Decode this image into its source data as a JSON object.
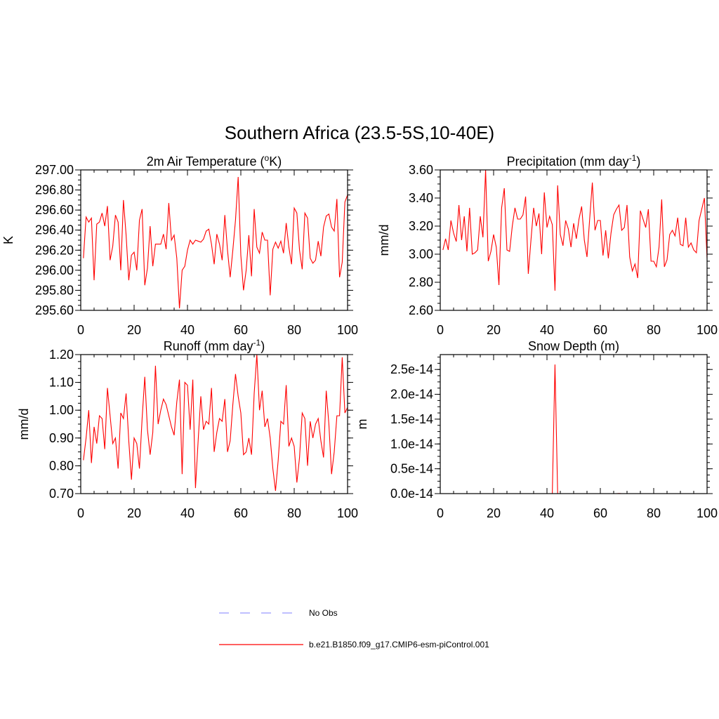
{
  "figure": {
    "title": "Southern Africa (23.5-5S,10-40E)"
  },
  "colors": {
    "series": "#ff0000",
    "obs": "#9999ff",
    "axis": "#000000",
    "background": "#ffffff"
  },
  "legend": {
    "placement": "bottom-center",
    "entries": [
      {
        "label": "No Obs",
        "style": "dashed",
        "color": "#9999ff"
      },
      {
        "label": "b.e21.B1850.f09_g17.CMIP6-esm-piControl.001",
        "style": "solid",
        "color": "#ff0000"
      }
    ]
  },
  "chart_data": [
    {
      "type": "line",
      "title_main": "2m Air Temperature (",
      "title_sup": "o",
      "title_end": "K)",
      "ylabel": "K",
      "xlabel": "",
      "xlim": [
        0,
        100
      ],
      "ylim": [
        295.6,
        297.0
      ],
      "xticks": [
        0,
        20,
        40,
        60,
        80,
        100
      ],
      "yticks": [
        295.6,
        295.8,
        296.0,
        296.2,
        296.4,
        296.6,
        296.8,
        297.0
      ],
      "ytick_labels": [
        "295.60",
        "295.80",
        "296.00",
        "296.20",
        "296.40",
        "296.60",
        "296.80",
        "297.00"
      ],
      "series": [
        {
          "name": "b.e21.B1850.f09_g17.CMIP6-esm-piControl.001",
          "x_start": 1,
          "values": [
            296.12,
            296.53,
            296.48,
            296.52,
            295.9,
            296.46,
            296.48,
            296.57,
            296.44,
            296.64,
            296.1,
            296.24,
            296.55,
            296.48,
            296.0,
            296.7,
            296.35,
            295.9,
            296.15,
            296.18,
            296.0,
            296.5,
            296.61,
            295.85,
            296.02,
            296.44,
            296.04,
            296.26,
            296.26,
            296.26,
            296.36,
            296.21,
            296.67,
            296.3,
            296.35,
            296.12,
            295.62,
            296.0,
            296.04,
            296.2,
            296.3,
            296.26,
            296.3,
            296.29,
            296.28,
            296.31,
            296.39,
            296.41,
            296.26,
            296.06,
            296.36,
            296.26,
            296.1,
            296.55,
            296.2,
            295.93,
            296.2,
            296.5,
            296.93,
            296.15,
            295.8,
            296.0,
            296.35,
            295.94,
            296.61,
            296.23,
            296.17,
            296.38,
            296.3,
            296.3,
            295.75,
            296.21,
            296.28,
            296.22,
            296.29,
            296.17,
            296.47,
            296.23,
            296.06,
            296.62,
            296.57,
            296.2,
            296.01,
            296.57,
            296.52,
            296.12,
            296.07,
            296.1,
            296.29,
            296.14,
            296.43,
            296.54,
            296.56,
            296.43,
            296.39,
            296.71,
            295.93,
            296.08,
            296.68,
            296.75
          ]
        }
      ]
    },
    {
      "type": "line",
      "title_main": "Precipitation (mm day",
      "title_sup": "-1",
      "title_end": ")",
      "ylabel": "mm/d",
      "xlabel": "",
      "xlim": [
        0,
        100
      ],
      "ylim": [
        2.6,
        3.6
      ],
      "xticks": [
        0,
        20,
        40,
        60,
        80,
        100
      ],
      "yticks": [
        2.6,
        2.8,
        3.0,
        3.2,
        3.4,
        3.6
      ],
      "ytick_labels": [
        "2.60",
        "2.80",
        "3.00",
        "3.20",
        "3.40",
        "3.60"
      ],
      "series": [
        {
          "name": "b.e21.B1850.f09_g17.CMIP6-esm-piControl.001",
          "x_start": 1,
          "values": [
            3.03,
            3.11,
            3.03,
            3.24,
            3.15,
            3.09,
            3.35,
            3.1,
            3.27,
            3.02,
            3.33,
            3.0,
            3.01,
            3.03,
            3.27,
            3.12,
            3.6,
            2.95,
            3.02,
            3.14,
            3.05,
            2.78,
            3.33,
            3.47,
            3.03,
            3.02,
            3.2,
            3.33,
            3.25,
            3.25,
            3.28,
            3.41,
            2.86,
            3.1,
            3.33,
            3.2,
            3.29,
            3.0,
            3.44,
            3.19,
            3.27,
            3.21,
            2.74,
            3.49,
            3.14,
            3.06,
            3.24,
            3.18,
            3.05,
            3.22,
            3.11,
            3.25,
            3.34,
            3.1,
            2.98,
            3.25,
            3.51,
            3.17,
            3.24,
            3.24,
            2.99,
            3.17,
            2.97,
            3.15,
            3.28,
            3.32,
            3.35,
            3.17,
            3.19,
            3.35,
            2.98,
            2.88,
            2.93,
            2.83,
            3.31,
            3.25,
            3.19,
            3.32,
            2.95,
            2.95,
            2.91,
            3.05,
            3.39,
            2.91,
            2.96,
            3.14,
            3.17,
            3.13,
            3.26,
            3.07,
            3.06,
            3.26,
            3.05,
            3.08,
            3.03,
            3.01,
            3.24,
            3.32,
            3.4,
            2.97
          ]
        }
      ]
    },
    {
      "type": "line",
      "title_main": "Runoff (mm day",
      "title_sup": "-1",
      "title_end": ")",
      "ylabel": "mm/d",
      "xlabel": "",
      "xlim": [
        0,
        100
      ],
      "ylim": [
        0.7,
        1.2
      ],
      "xticks": [
        0,
        20,
        40,
        60,
        80,
        100
      ],
      "yticks": [
        0.7,
        0.8,
        0.9,
        1.0,
        1.1,
        1.2
      ],
      "ytick_labels": [
        "0.70",
        "0.80",
        "0.90",
        "1.00",
        "1.10",
        "1.20"
      ],
      "series": [
        {
          "name": "b.e21.B1850.f09_g17.CMIP6-esm-piControl.001",
          "x_start": 1,
          "values": [
            0.82,
            0.9,
            1.0,
            0.81,
            0.94,
            0.88,
            0.98,
            0.97,
            0.86,
            1.08,
            0.98,
            0.88,
            0.9,
            0.79,
            0.99,
            0.97,
            1.06,
            0.89,
            0.75,
            0.9,
            0.88,
            0.79,
            0.97,
            1.12,
            0.93,
            0.84,
            0.92,
            1.16,
            0.95,
            1.0,
            1.04,
            1.02,
            0.98,
            0.94,
            0.91,
            1.03,
            1.11,
            0.77,
            1.1,
            1.09,
            0.93,
            1.11,
            0.72,
            0.89,
            1.05,
            0.93,
            0.96,
            0.95,
            1.08,
            0.85,
            0.92,
            0.97,
            0.96,
            1.04,
            0.85,
            0.89,
            1.02,
            1.13,
            1.05,
            0.99,
            0.84,
            0.85,
            0.9,
            0.84,
            1.06,
            1.2,
            1.0,
            1.07,
            0.94,
            0.97,
            0.9,
            0.79,
            0.71,
            0.82,
            0.96,
            0.95,
            1.09,
            0.87,
            0.9,
            0.87,
            0.74,
            0.83,
            0.99,
            0.97,
            0.8,
            0.96,
            0.9,
            0.95,
            0.97,
            0.89,
            0.83,
            1.07,
            0.95,
            0.77,
            0.85,
            0.98,
            0.98,
            1.19,
            0.99,
            1.01
          ]
        }
      ]
    },
    {
      "type": "line",
      "title_main": "Snow Depth (m)",
      "title_sup": "",
      "title_end": "",
      "ylabel": "m",
      "xlabel": "",
      "xlim": [
        0,
        100
      ],
      "ylim": [
        0,
        2.8e-14
      ],
      "xticks": [
        0,
        20,
        40,
        60,
        80,
        100
      ],
      "yticks": [
        0,
        5e-15,
        1e-14,
        1.5e-14,
        2e-14,
        2.5e-14
      ],
      "ytick_labels": [
        "0.0e-14",
        "0.5e-14",
        "1.0e-14",
        "1.5e-14",
        "2.0e-14",
        "2.5e-14"
      ],
      "series": [
        {
          "name": "b.e21.B1850.f09_g17.CMIP6-esm-piControl.001",
          "x_start": 1,
          "values": [
            0,
            0,
            0,
            0,
            0,
            0,
            0,
            0,
            0,
            0,
            0,
            0,
            0,
            0,
            0,
            0,
            0,
            0,
            0,
            0,
            0,
            0,
            0,
            0,
            0,
            0,
            0,
            0,
            0,
            0,
            0,
            0,
            0,
            0,
            0,
            0,
            0,
            0,
            0,
            0,
            0,
            0,
            2.6e-14,
            0,
            0,
            0,
            0,
            0,
            0,
            0,
            0,
            0,
            0,
            0,
            0,
            0,
            0,
            0,
            0,
            0,
            0,
            0,
            0,
            0,
            0,
            0,
            3e-17,
            0,
            0,
            0,
            0,
            0,
            0,
            0,
            0,
            0,
            0,
            0,
            0,
            0,
            0,
            0,
            0,
            0,
            0,
            0,
            0,
            0,
            0,
            0,
            0,
            0,
            0,
            0,
            0,
            0,
            0,
            0,
            0,
            0
          ]
        }
      ]
    }
  ]
}
